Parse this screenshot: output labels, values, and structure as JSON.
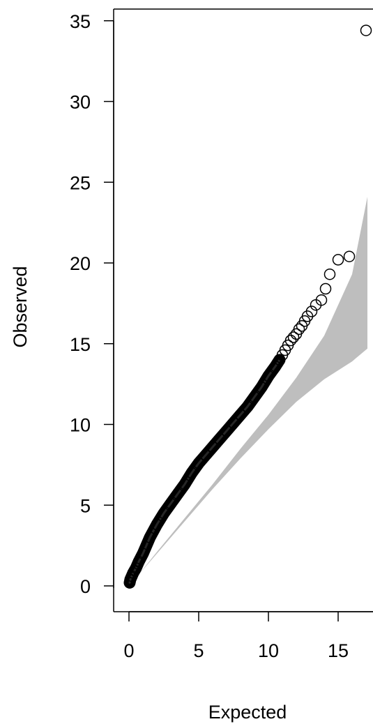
{
  "chart_data": {
    "type": "scatter",
    "title": "",
    "xlabel": "Expected",
    "ylabel": "Observed",
    "xlim": [
      -0.8,
      17.6
    ],
    "ylim": [
      -1.2,
      35.5
    ],
    "x_ticks": [
      0,
      5,
      10,
      15
    ],
    "y_ticks": [
      0,
      5,
      10,
      15,
      20,
      25,
      30,
      35
    ],
    "grid": false,
    "legend": "none",
    "confidence_band": {
      "color": "#bebebe",
      "x": [
        0.6,
        2,
        4,
        6,
        8,
        10,
        12,
        14,
        16,
        17.1
      ],
      "lower": [
        0.6,
        2.0,
        4.0,
        6.0,
        7.9,
        9.7,
        11.4,
        12.8,
        13.9,
        14.7
      ],
      "upper": [
        0.6,
        2.1,
        4.2,
        6.3,
        8.5,
        10.6,
        12.9,
        15.5,
        19.3,
        24.1
      ]
    },
    "series": [
      {
        "marker": "open-circle",
        "color": "#000000",
        "x": [
          0.05,
          0.1,
          0.2,
          0.3,
          0.4,
          0.5,
          0.7,
          1.0,
          1.5,
          2.0,
          2.5,
          3.0,
          3.5,
          4.0,
          4.5,
          5.0,
          5.5,
          6.0,
          6.5,
          7.0,
          7.5,
          8.0,
          8.5,
          9.0,
          9.5,
          10.0,
          10.5,
          10.8,
          11.0,
          11.2,
          11.4,
          11.6,
          11.8,
          12.0,
          12.2,
          12.4,
          12.6,
          12.8,
          13.1,
          13.4,
          13.8,
          14.1,
          14.4,
          15.0,
          15.8,
          17.0
        ],
        "y": [
          0.2,
          0.4,
          0.6,
          0.8,
          0.95,
          1.1,
          1.5,
          2.0,
          3.0,
          3.8,
          4.5,
          5.1,
          5.7,
          6.3,
          7.0,
          7.6,
          8.1,
          8.6,
          9.1,
          9.6,
          10.1,
          10.6,
          11.1,
          11.7,
          12.3,
          13.0,
          13.6,
          14.0,
          14.3,
          14.6,
          14.9,
          15.2,
          15.4,
          15.6,
          15.9,
          16.1,
          16.4,
          16.7,
          17.0,
          17.4,
          17.7,
          18.4,
          19.3,
          20.2,
          20.4,
          34.4
        ]
      }
    ]
  }
}
